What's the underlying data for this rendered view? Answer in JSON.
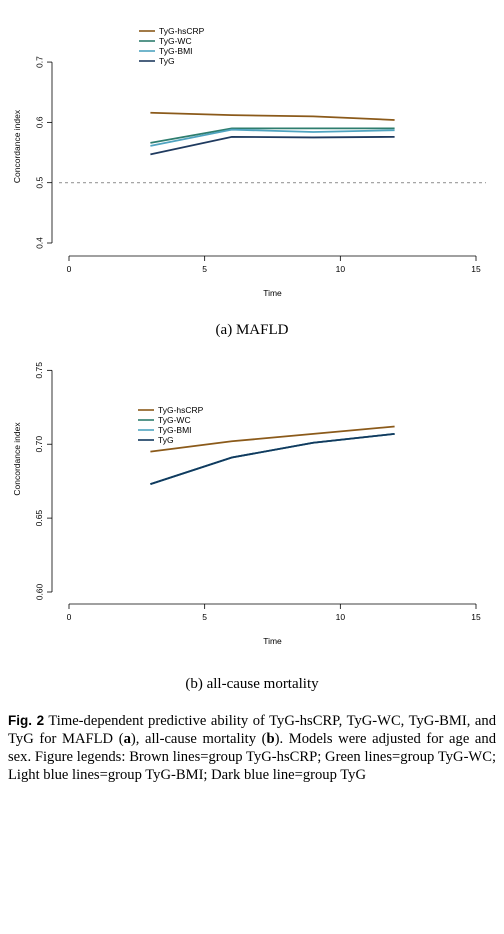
{
  "chart_data": [
    {
      "type": "line",
      "xlabel": "Time",
      "ylabel": "Concordance index",
      "xlim": [
        0,
        15
      ],
      "ylim": [
        0.4,
        0.72
      ],
      "xticks": [
        "0",
        "5",
        "10",
        "15"
      ],
      "yticks": [
        "0.4",
        "0.5",
        "0.6",
        "0.7"
      ],
      "yticks_values": [
        0.4,
        0.5,
        0.6,
        0.7
      ],
      "xticks_values": [
        0,
        5,
        10,
        15
      ],
      "legend_placement": "top-left",
      "reference_line": 0.5,
      "x": [
        3,
        6,
        9,
        12
      ],
      "series": [
        {
          "name": "TyG-hsCRP",
          "color": "#8B5A1A",
          "values": [
            0.616,
            0.612,
            0.61,
            0.604
          ]
        },
        {
          "name": "TyG-WC",
          "color": "#2E7D6E",
          "values": [
            0.566,
            0.59,
            0.59,
            0.59
          ]
        },
        {
          "name": "TyG-BMI",
          "color": "#4FA3C0",
          "values": [
            0.561,
            0.588,
            0.584,
            0.587
          ]
        },
        {
          "name": "TyG",
          "color": "#1F3A5F",
          "values": [
            0.547,
            0.576,
            0.575,
            0.576
          ]
        }
      ]
    },
    {
      "type": "line",
      "xlabel": "Time",
      "ylabel": "Concordance index",
      "xlim": [
        0,
        15
      ],
      "ylim": [
        0.6,
        0.78
      ],
      "xticks": [
        "0",
        "5",
        "10",
        "15"
      ],
      "yticks": [
        "0.60",
        "0.65",
        "0.70",
        "0.75"
      ],
      "yticks_values": [
        0.6,
        0.65,
        0.7,
        0.75
      ],
      "xticks_values": [
        0,
        5,
        10,
        15
      ],
      "legend_placement": "top-left",
      "x": [
        3,
        6,
        9,
        12
      ],
      "series": [
        {
          "name": "TyG-hsCRP",
          "color": "#8B5A1A",
          "values": [
            0.695,
            0.702,
            0.707,
            0.712
          ]
        },
        {
          "name": "TyG-WC",
          "color": "#2E7D6E",
          "values": [
            0.673,
            0.691,
            0.701,
            0.707
          ]
        },
        {
          "name": "TyG-BMI",
          "color": "#4FA3C0",
          "values": [
            0.673,
            0.691,
            0.701,
            0.707
          ]
        },
        {
          "name": "TyG",
          "color": "#12395E",
          "values": [
            0.673,
            0.691,
            0.701,
            0.707
          ]
        }
      ]
    }
  ],
  "subcaptions": {
    "a": "(a) MAFLD",
    "b": "(b) all-cause mortality"
  },
  "caption": {
    "label": "Fig. 2",
    "t1": " Time-dependent predictive ability of TyG-hsCRP, TyG-WC, TyG-BMI, and TyG for MAFLD (",
    "b1": "a",
    "t2": "), all-cause mortality (",
    "b2": "b",
    "t3": "). Models were adjusted for age and sex. Figure legends: Brown lines=group TyG-hsCRP; Green lines=group TyG-WC; Light blue lines=group TyG-BMI; Dark blue line=group TyG"
  }
}
